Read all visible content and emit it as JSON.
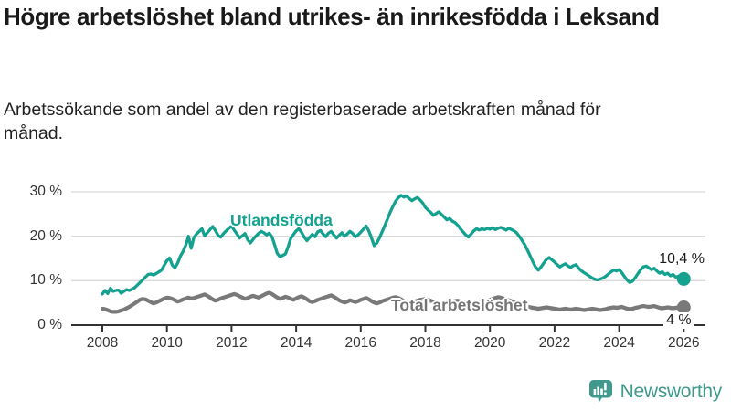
{
  "header": {
    "title": "Högre arbetslöshet bland utrikes- än inrikesfödda i Leksand",
    "subtitle": "Arbetssökande som andel av den registerbaserade arbetskraften månad för månad."
  },
  "footer": {
    "brand": "Newsworthy"
  },
  "colors": {
    "accent_teal": "#14a18f",
    "line_gray": "#797979",
    "grid": "#d9d9d9",
    "axis": "#333333",
    "brand_teal": "#3f998c"
  },
  "chart_data": {
    "type": "line",
    "title": "Högre arbetslöshet bland utrikes- än inrikesfödda i Leksand",
    "subtitle": "Arbetssökande som andel av den registerbaserade arbetskraften månad för månad.",
    "xlabel": "",
    "ylabel": "",
    "x_start_year": 2008,
    "x_step_months": 1,
    "x_ticks": [
      2008,
      2010,
      2012,
      2014,
      2016,
      2018,
      2020,
      2022,
      2024,
      2026
    ],
    "y_ticks": [
      {
        "v": 0,
        "label": "0 %"
      },
      {
        "v": 10,
        "label": "10 %"
      },
      {
        "v": 20,
        "label": "20 %"
      },
      {
        "v": 30,
        "label": "30 %"
      }
    ],
    "ylim": [
      0,
      31.5
    ],
    "grid": "horizontal",
    "legend_position": "inline-labels",
    "series": [
      {
        "name": "Utlandsfödda",
        "color": "#14a18f",
        "end_label": "10,4 %",
        "end_value": 10.4,
        "values": [
          7.0,
          7.8,
          7.1,
          8.3,
          7.6,
          7.8,
          7.9,
          7.2,
          7.6,
          8.0,
          7.8,
          8.1,
          8.4,
          9.0,
          9.6,
          10.2,
          10.8,
          11.4,
          11.5,
          11.3,
          11.6,
          12.0,
          12.4,
          13.5,
          14.5,
          15.1,
          13.5,
          12.9,
          14.0,
          15.5,
          16.6,
          18.0,
          20.0,
          17.3,
          19.7,
          20.5,
          21.1,
          21.7,
          20.1,
          20.8,
          21.5,
          22.2,
          21.3,
          20.2,
          19.8,
          20.6,
          21.2,
          21.8,
          22.3,
          21.4,
          20.5,
          19.6,
          20.1,
          20.6,
          19.2,
          18.5,
          19.3,
          20.0,
          20.6,
          21.1,
          20.8,
          20.3,
          20.7,
          19.9,
          18.1,
          16.1,
          15.4,
          15.7,
          16.0,
          17.6,
          19.5,
          20.4,
          21.2,
          21.7,
          20.9,
          19.8,
          19.0,
          19.7,
          20.4,
          19.9,
          21.0,
          21.3,
          20.5,
          19.9,
          20.7,
          21.1,
          20.3,
          19.6,
          20.2,
          20.8,
          20.0,
          20.5,
          21.1,
          20.6,
          19.9,
          20.3,
          20.9,
          21.6,
          22.3,
          21.2,
          19.6,
          17.9,
          18.5,
          19.7,
          21.1,
          22.5,
          24.0,
          25.5,
          26.8,
          27.9,
          28.7,
          29.2,
          28.8,
          29.1,
          28.5,
          28.0,
          28.4,
          28.7,
          28.2,
          27.5,
          26.5,
          25.9,
          25.4,
          24.7,
          25.1,
          25.5,
          24.9,
          24.3,
          23.7,
          24.0,
          23.4,
          23.1,
          22.5,
          21.7,
          21.0,
          20.3,
          19.8,
          20.5,
          21.2,
          21.7,
          21.4,
          21.7,
          21.5,
          21.8,
          21.6,
          21.9,
          21.5,
          21.8,
          22.0,
          21.7,
          21.4,
          21.8,
          21.5,
          21.2,
          20.7,
          19.9,
          19.0,
          18.0,
          16.8,
          15.5,
          14.2,
          13.0,
          12.4,
          13.1,
          14.0,
          14.8,
          15.2,
          14.7,
          14.2,
          13.6,
          13.1,
          13.5,
          13.8,
          13.3,
          13.0,
          13.4,
          13.6,
          12.8,
          12.2,
          11.8,
          11.4,
          11.0,
          10.6,
          10.3,
          10.2,
          10.4,
          10.6,
          11.0,
          11.5,
          12.0,
          12.4,
          12.2,
          12.5,
          11.8,
          10.9,
          10.1,
          9.6,
          9.9,
          10.7,
          11.6,
          12.5,
          13.1,
          13.3,
          12.9,
          12.5,
          12.8,
          12.2,
          11.7,
          12.0,
          11.4,
          11.7,
          11.1,
          11.4,
          10.8,
          11.0,
          10.6,
          10.4
        ]
      },
      {
        "name": "Total arbetslöshet",
        "color": "#797979",
        "end_label": "4 %",
        "end_value": 4.0,
        "values": [
          3.7,
          3.6,
          3.4,
          3.1,
          3.0,
          3.0,
          3.1,
          3.3,
          3.5,
          3.8,
          4.1,
          4.5,
          4.9,
          5.3,
          5.7,
          5.9,
          5.8,
          5.5,
          5.2,
          4.9,
          5.1,
          5.4,
          5.7,
          6.0,
          6.2,
          6.1,
          5.9,
          5.6,
          5.3,
          5.5,
          5.8,
          6.0,
          6.2,
          6.0,
          6.1,
          6.3,
          6.5,
          6.7,
          6.9,
          6.6,
          6.2,
          5.8,
          5.5,
          5.7,
          6.0,
          6.2,
          6.4,
          6.6,
          6.8,
          7.0,
          6.8,
          6.5,
          6.2,
          5.9,
          6.1,
          6.4,
          6.6,
          6.4,
          6.2,
          6.5,
          6.8,
          7.1,
          7.3,
          7.0,
          6.6,
          6.2,
          5.9,
          6.1,
          6.4,
          6.2,
          5.9,
          5.7,
          6.0,
          6.3,
          6.5,
          6.2,
          5.8,
          5.4,
          5.2,
          5.4,
          5.7,
          5.9,
          6.1,
          6.3,
          6.5,
          6.7,
          6.4,
          6.0,
          5.6,
          5.3,
          5.1,
          5.3,
          5.6,
          5.4,
          5.2,
          5.4,
          5.7,
          5.9,
          6.1,
          5.8,
          5.4,
          5.1,
          4.9,
          5.1,
          5.4,
          5.6,
          5.8,
          6.0,
          6.2,
          6.3,
          6.1,
          5.8,
          5.4,
          5.1,
          4.9,
          5.1,
          5.3,
          5.5,
          5.7,
          5.8,
          5.9,
          5.7,
          5.5,
          5.2,
          4.9,
          4.7,
          4.5,
          4.7,
          4.9,
          5.1,
          5.3,
          5.4,
          5.5,
          5.3,
          5.1,
          4.9,
          4.7,
          4.5,
          4.7,
          4.9,
          5.1,
          5.3,
          5.4,
          5.5,
          5.7,
          5.9,
          6.1,
          6.3,
          6.2,
          6.0,
          5.8,
          5.6,
          5.4,
          5.2,
          5.0,
          4.8,
          4.6,
          4.4,
          4.2,
          4.0,
          3.9,
          3.8,
          3.7,
          3.8,
          3.9,
          4.0,
          3.9,
          3.8,
          3.7,
          3.6,
          3.5,
          3.6,
          3.7,
          3.6,
          3.5,
          3.6,
          3.7,
          3.6,
          3.5,
          3.4,
          3.5,
          3.6,
          3.7,
          3.6,
          3.5,
          3.4,
          3.5,
          3.6,
          3.8,
          3.9,
          4.0,
          3.9,
          4.0,
          4.1,
          3.9,
          3.7,
          3.6,
          3.7,
          3.9,
          4.0,
          4.2,
          4.3,
          4.2,
          4.1,
          4.2,
          4.3,
          4.1,
          3.9,
          3.8,
          3.9,
          4.0,
          3.9,
          3.8,
          3.9,
          4.0,
          3.9,
          4.0
        ]
      }
    ]
  }
}
